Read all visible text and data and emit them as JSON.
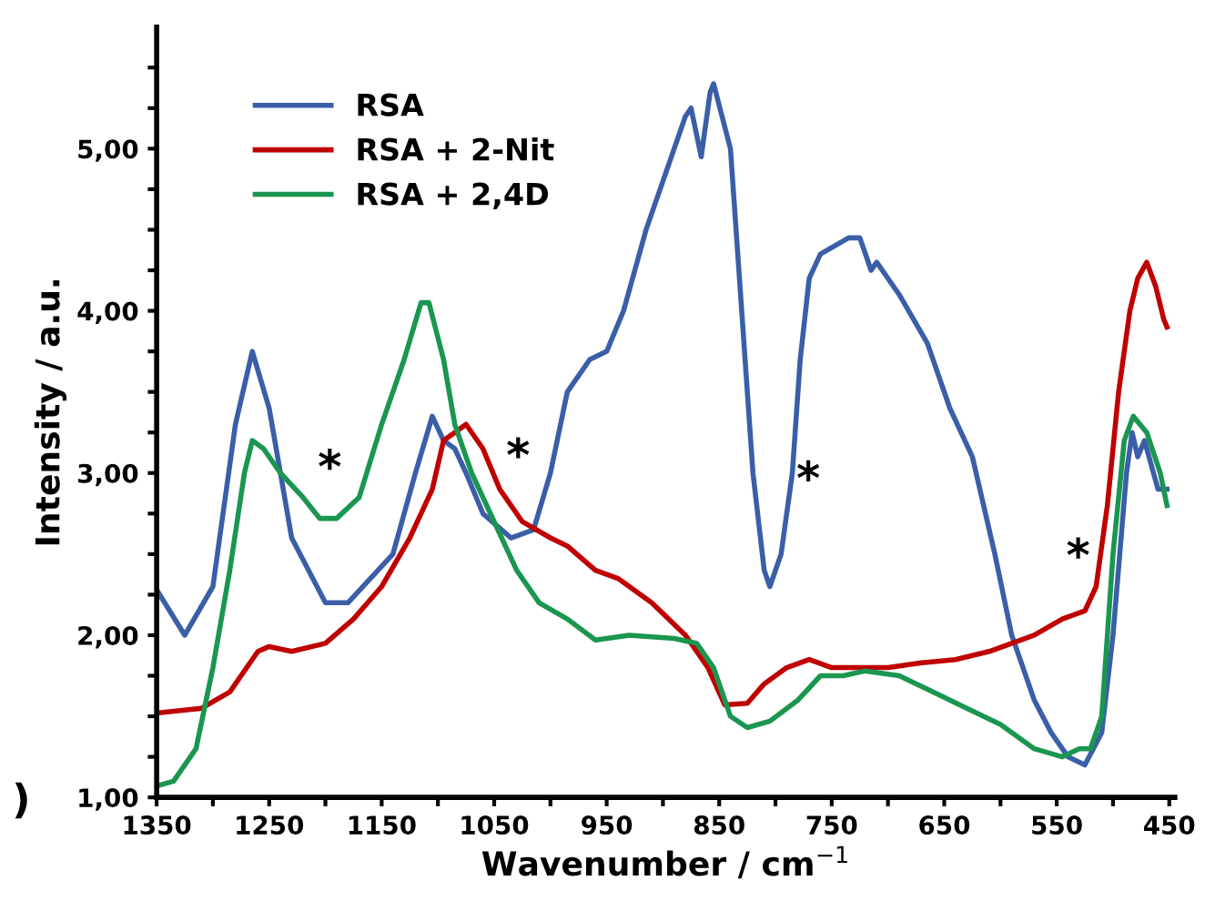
{
  "chart_data": {
    "type": "line",
    "xlabel": "Wavenumber / cm$^{−1}$",
    "ylabel": "Intensity / a.u.",
    "xlim": [
      1350,
      445
    ],
    "ylim": [
      1,
      5.75
    ],
    "xticks": [
      1350,
      {
        "value": 1300,
        "label": null
      },
      1250,
      {
        "value": 1200,
        "label": null
      },
      1150,
      {
        "value": 1100,
        "label": null
      },
      1050,
      {
        "value": 1000,
        "label": null
      },
      950,
      {
        "value": 900,
        "label": null
      },
      850,
      {
        "value": 800,
        "label": null
      },
      750,
      {
        "value": 700,
        "label": null
      },
      650,
      {
        "value": 600,
        "label": null
      },
      550,
      {
        "value": 500,
        "label": null
      },
      450
    ],
    "yticks": [
      {
        "value": 1,
        "label": "1,00"
      },
      {
        "value": 1.25,
        "label": null
      },
      {
        "value": 1.5,
        "label": null
      },
      {
        "value": 1.75,
        "label": null
      },
      {
        "value": 2,
        "label": "2,00"
      },
      {
        "value": 2.25,
        "label": null
      },
      {
        "value": 2.5,
        "label": null
      },
      {
        "value": 2.75,
        "label": null
      },
      {
        "value": 3,
        "label": "3,00"
      },
      {
        "value": 3.25,
        "label": null
      },
      {
        "value": 3.5,
        "label": null
      },
      {
        "value": 3.75,
        "label": null
      },
      {
        "value": 4,
        "label": "4,00"
      },
      {
        "value": 4.25,
        "label": null
      },
      {
        "value": 4.5,
        "label": null
      },
      {
        "value": 4.75,
        "label": null
      },
      {
        "value": 5,
        "label": "5,00"
      },
      {
        "value": 5.25,
        "label": null
      },
      {
        "value": 5.5,
        "label": null
      }
    ],
    "grid": false,
    "legend": "top left",
    "marker": "none",
    "line_style": "solid",
    "series": [
      {
        "name": "RSA",
        "color": "#3a5fa8",
        "x": [
          1350,
          1325,
          1300,
          1280,
          1265,
          1250,
          1230,
          1200,
          1180,
          1140,
          1120,
          1105,
          1095,
          1085,
          1075,
          1060,
          1035,
          1015,
          1000,
          985,
          965,
          950,
          935,
          915,
          890,
          880,
          875,
          866,
          858,
          855,
          840,
          830,
          820,
          810,
          805,
          795,
          785,
          778,
          770,
          760,
          735,
          725,
          715,
          710,
          690,
          665,
          645,
          625,
          605,
          590,
          570,
          555,
          540,
          525,
          510,
          500,
          488,
          483,
          478,
          472,
          460,
          452
        ],
        "values": [
          2.28,
          2.0,
          2.3,
          3.3,
          3.75,
          3.4,
          2.6,
          2.2,
          2.2,
          2.5,
          3.0,
          3.35,
          3.2,
          3.15,
          3.0,
          2.75,
          2.6,
          2.65,
          3.0,
          3.5,
          3.7,
          3.75,
          4.0,
          4.5,
          5.0,
          5.2,
          5.25,
          4.95,
          5.35,
          5.4,
          5.0,
          4.0,
          3.0,
          2.4,
          2.3,
          2.5,
          3.0,
          3.7,
          4.2,
          4.35,
          4.45,
          4.45,
          4.25,
          4.3,
          4.1,
          3.8,
          3.4,
          3.1,
          2.5,
          2.0,
          1.6,
          1.4,
          1.25,
          1.2,
          1.4,
          2.0,
          3.0,
          3.25,
          3.1,
          3.2,
          2.9,
          2.9
        ]
      },
      {
        "name": "RSA + 2-Nit",
        "color": "#c00000",
        "x": [
          1350,
          1310,
          1285,
          1260,
          1250,
          1230,
          1200,
          1175,
          1150,
          1125,
          1105,
          1095,
          1085,
          1075,
          1060,
          1045,
          1025,
          1000,
          985,
          960,
          940,
          910,
          880,
          860,
          845,
          825,
          810,
          790,
          770,
          750,
          700,
          670,
          640,
          610,
          590,
          570,
          545,
          525,
          515,
          505,
          495,
          485,
          478,
          470,
          462,
          455,
          452
        ],
        "values": [
          1.52,
          1.55,
          1.65,
          1.9,
          1.93,
          1.9,
          1.95,
          2.1,
          2.3,
          2.6,
          2.9,
          3.2,
          3.25,
          3.3,
          3.15,
          2.9,
          2.7,
          2.6,
          2.55,
          2.4,
          2.35,
          2.2,
          2.0,
          1.8,
          1.57,
          1.58,
          1.7,
          1.8,
          1.85,
          1.8,
          1.8,
          1.83,
          1.85,
          1.9,
          1.95,
          2.0,
          2.1,
          2.15,
          2.3,
          2.8,
          3.5,
          4.0,
          4.2,
          4.3,
          4.15,
          3.95,
          3.9
        ]
      },
      {
        "name": "RSA + 2,4D",
        "color": "#1a9650",
        "x": [
          1350,
          1335,
          1315,
          1300,
          1285,
          1272,
          1265,
          1255,
          1240,
          1220,
          1205,
          1190,
          1170,
          1150,
          1130,
          1115,
          1108,
          1095,
          1085,
          1070,
          1050,
          1030,
          1010,
          985,
          960,
          930,
          890,
          870,
          855,
          840,
          825,
          805,
          780,
          760,
          740,
          720,
          690,
          660,
          630,
          600,
          570,
          545,
          530,
          520,
          510,
          500,
          490,
          482,
          470,
          458,
          452
        ],
        "values": [
          1.07,
          1.1,
          1.3,
          1.8,
          2.4,
          3.0,
          3.2,
          3.15,
          3.0,
          2.85,
          2.72,
          2.72,
          2.85,
          3.3,
          3.7,
          4.05,
          4.05,
          3.7,
          3.3,
          3.0,
          2.7,
          2.4,
          2.2,
          2.1,
          1.97,
          2.0,
          1.98,
          1.95,
          1.8,
          1.5,
          1.43,
          1.47,
          1.6,
          1.75,
          1.75,
          1.78,
          1.75,
          1.65,
          1.55,
          1.45,
          1.3,
          1.25,
          1.3,
          1.3,
          1.5,
          2.5,
          3.2,
          3.35,
          3.25,
          3.0,
          2.8
        ]
      }
    ],
    "annotations": [
      "*",
      "*",
      "*",
      "*",
      ")"
    ]
  }
}
